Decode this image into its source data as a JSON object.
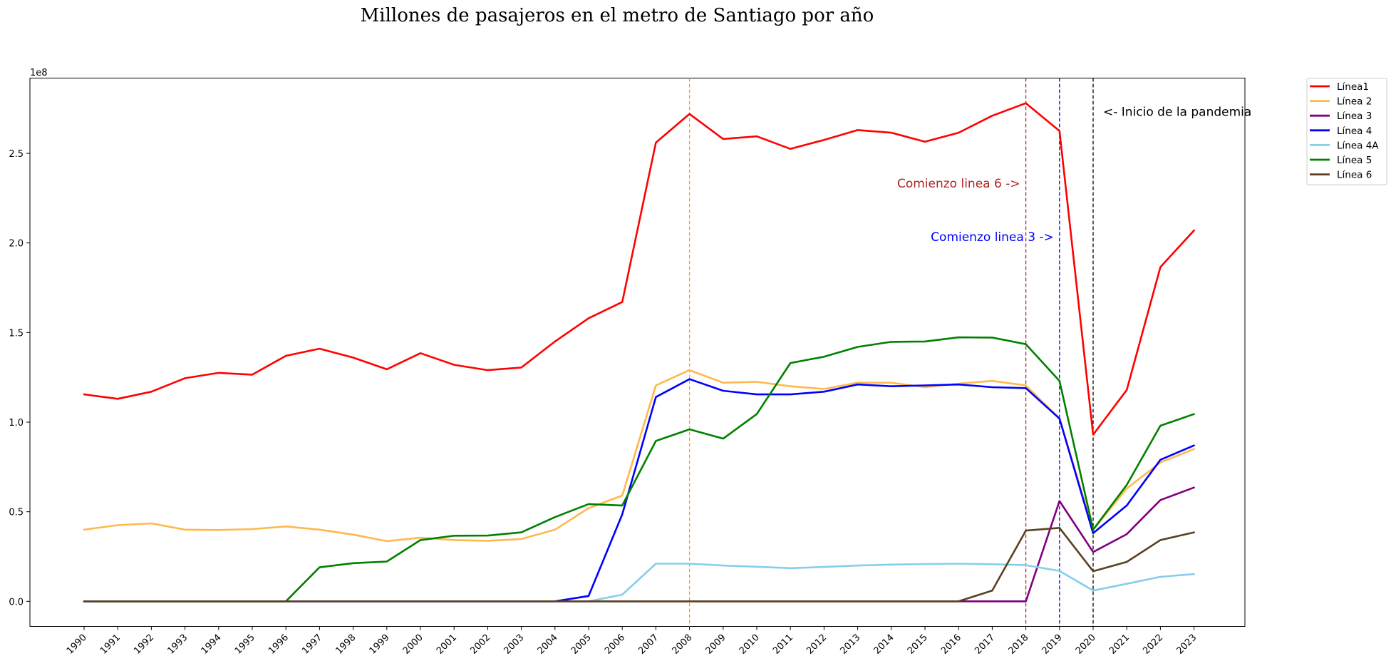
{
  "chart_data": {
    "type": "line",
    "title": "Millones de pasajeros en el metro de Santiago por año",
    "xlabel": "",
    "ylabel": "",
    "offset_label": "1e8",
    "ylim": [
      -14000000,
      292000000
    ],
    "yticks": [
      {
        "value": 0,
        "label": "0.0"
      },
      {
        "value": 50000000,
        "label": "0.5"
      },
      {
        "value": 100000000,
        "label": "1.0"
      },
      {
        "value": 150000000,
        "label": "1.5"
      },
      {
        "value": 200000000,
        "label": "2.0"
      },
      {
        "value": 250000000,
        "label": "2.5"
      }
    ],
    "categories": [
      "1990",
      "1991",
      "1992",
      "1993",
      "1994",
      "1995",
      "1996",
      "1997",
      "1998",
      "1999",
      "2000",
      "2001",
      "2002",
      "2003",
      "2004",
      "2005",
      "2006",
      "2007",
      "2008",
      "2009",
      "2010",
      "2011",
      "2012",
      "2013",
      "2014",
      "2015",
      "2016",
      "2017",
      "2018",
      "2019",
      "2020",
      "2021",
      "2022",
      "2023"
    ],
    "series": [
      {
        "name": "Línea1",
        "color": "#ff0000",
        "values": [
          115500000,
          113000000,
          117000000,
          124500000,
          127500000,
          126500000,
          137000000,
          141000000,
          136000000,
          129500000,
          138500000,
          132000000,
          129000000,
          130500000,
          145000000,
          158000000,
          167000000,
          256000000,
          272000000,
          258000000,
          259500000,
          252500000,
          257500000,
          263000000,
          261500000,
          256500000,
          261500000,
          271000000,
          278000000,
          262500000,
          93000000,
          118000000,
          186500000,
          207000000
        ]
      },
      {
        "name": "Línea 2",
        "color": "#ffb84d",
        "values": [
          40000000,
          42500000,
          43500000,
          40000000,
          39800000,
          40300000,
          41800000,
          40000000,
          37200000,
          33600000,
          35500000,
          34200000,
          33800000,
          34800000,
          40000000,
          52000000,
          59000000,
          120500000,
          129000000,
          122000000,
          122500000,
          120000000,
          118500000,
          122000000,
          122000000,
          119500000,
          121500000,
          123000000,
          120500000,
          102000000,
          40000000,
          63000000,
          77500000,
          85000000
        ]
      },
      {
        "name": "Línea 3",
        "color": "#800080",
        "values": [
          0,
          0,
          0,
          0,
          0,
          0,
          0,
          0,
          0,
          0,
          0,
          0,
          0,
          0,
          0,
          0,
          0,
          0,
          0,
          0,
          0,
          0,
          0,
          0,
          0,
          0,
          0,
          0,
          0,
          56000000,
          27500000,
          37500000,
          56500000,
          63500000
        ]
      },
      {
        "name": "Línea 4",
        "color": "#0000ff",
        "values": [
          0,
          0,
          0,
          0,
          0,
          0,
          0,
          0,
          0,
          0,
          0,
          0,
          0,
          0,
          0,
          3000000,
          48500000,
          114000000,
          124000000,
          117500000,
          115500000,
          115500000,
          117000000,
          121000000,
          120000000,
          120500000,
          121000000,
          119500000,
          119000000,
          102000000,
          38000000,
          53500000,
          79000000,
          87000000
        ]
      },
      {
        "name": "Línea 4A",
        "color": "#87ceeb",
        "values": [
          0,
          0,
          0,
          0,
          0,
          0,
          0,
          0,
          0,
          0,
          0,
          0,
          0,
          0,
          0,
          0,
          3700000,
          21000000,
          21000000,
          20000000,
          19300000,
          18500000,
          19200000,
          20000000,
          20500000,
          20800000,
          21000000,
          20700000,
          20200000,
          17000000,
          6000000,
          9800000,
          13700000,
          15200000
        ]
      },
      {
        "name": "Línea 5",
        "color": "#008000",
        "values": [
          0,
          0,
          0,
          0,
          0,
          0,
          0,
          19000000,
          21300000,
          22200000,
          34200000,
          36600000,
          36700000,
          38500000,
          47000000,
          54300000,
          53500000,
          89500000,
          96000000,
          90800000,
          104500000,
          133000000,
          136500000,
          142000000,
          144800000,
          145000000,
          147300000,
          147200000,
          143500000,
          123000000,
          40000000,
          65000000,
          98000000,
          104500000
        ]
      },
      {
        "name": "Línea 6",
        "color": "#5b4020",
        "values": [
          0,
          0,
          0,
          0,
          0,
          0,
          0,
          0,
          0,
          0,
          0,
          0,
          0,
          0,
          0,
          0,
          0,
          0,
          0,
          0,
          0,
          0,
          0,
          0,
          0,
          0,
          0,
          6000000,
          39500000,
          41000000,
          16800000,
          22000000,
          34200000,
          38500000
        ]
      }
    ],
    "vlines": [
      {
        "x": "2008",
        "color": "#ffa500"
      },
      {
        "x": "2018",
        "color": "#b22222"
      },
      {
        "x": "2019",
        "color": "#0000ff"
      },
      {
        "x": "2020",
        "color": "#000000"
      }
    ],
    "annotations": [
      {
        "text": "<- Inicio de la pandemia",
        "color": "#000000",
        "x": "2020",
        "y": 271000000,
        "anchor": "start"
      },
      {
        "text": "Comienzo linea 6 ->",
        "color": "#b22222",
        "x": "2018",
        "y": 231000000,
        "anchor": "end"
      },
      {
        "text": "Comienzo linea 3 ->",
        "color": "#0000ff",
        "x": "2019",
        "y": 201000000,
        "anchor": "end"
      }
    ],
    "legend": "outside-top-right",
    "grid": false
  }
}
